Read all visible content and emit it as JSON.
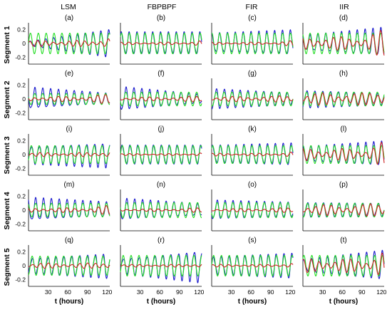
{
  "column_titles": [
    "LSM",
    "FBPBPF",
    "FIR",
    "IIR"
  ],
  "row_titles": [
    "Segment 1",
    "Segment 2",
    "Segment 3",
    "Segment 4",
    "Segment 5"
  ],
  "colors": {
    "blue": "#1a1acc",
    "green": "#22dd22",
    "red": "#cc2222"
  },
  "chart_data": {
    "type": "line",
    "layout": "grid 5 rows x 4 columns",
    "xlabel": "t (hours)",
    "x_ticks": [
      30,
      60,
      90,
      120
    ],
    "y_ticks": [
      -0.2,
      0,
      0.2
    ],
    "y_tick_labels": [
      "-0.2",
      "0",
      "0.2"
    ],
    "xlim": [
      0,
      124
    ],
    "ylim": [
      -0.3,
      0.3
    ],
    "period_hours": 12,
    "panels": [
      {
        "label": "(a)",
        "row": 0,
        "col": 0,
        "blue_amp_start": 0.03,
        "blue_amp_end": 0.19,
        "green_amp": 0.15,
        "red_amp": 0.045
      },
      {
        "label": "(b)",
        "row": 0,
        "col": 1,
        "blue_amp_start": 0.15,
        "blue_amp_end": 0.15,
        "green_amp": 0.15,
        "red_amp": 0.02
      },
      {
        "label": "(c)",
        "row": 0,
        "col": 2,
        "blue_amp_start": 0.13,
        "blue_amp_end": 0.17,
        "green_amp": 0.15,
        "red_amp": 0.02
      },
      {
        "label": "(d)",
        "row": 0,
        "col": 3,
        "blue_amp_start": 0.1,
        "blue_amp_end": 0.2,
        "green_amp": 0.15,
        "red_amp": 0.1
      },
      {
        "label": "(e)",
        "row": 1,
        "col": 0,
        "blue_amp_start": 0.15,
        "blue_amp_end": 0.07,
        "green_amp": 0.08,
        "red_amp": 0.04
      },
      {
        "label": "(f)",
        "row": 1,
        "col": 1,
        "blue_amp_start": 0.16,
        "blue_amp_end": 0.06,
        "green_amp": 0.1,
        "red_amp": 0.03
      },
      {
        "label": "(g)",
        "row": 1,
        "col": 2,
        "blue_amp_start": 0.14,
        "blue_amp_end": 0.08,
        "green_amp": 0.1,
        "red_amp": 0.04
      },
      {
        "label": "(h)",
        "row": 1,
        "col": 3,
        "blue_amp_start": 0.12,
        "blue_amp_end": 0.08,
        "green_amp": 0.1,
        "red_amp": 0.09
      },
      {
        "label": "(i)",
        "row": 2,
        "col": 0,
        "blue_amp_start": 0.12,
        "blue_amp_end": 0.17,
        "green_amp": 0.13,
        "red_amp": 0.03
      },
      {
        "label": "(j)",
        "row": 2,
        "col": 1,
        "blue_amp_start": 0.13,
        "blue_amp_end": 0.13,
        "green_amp": 0.13,
        "red_amp": 0.015
      },
      {
        "label": "(k)",
        "row": 2,
        "col": 2,
        "blue_amp_start": 0.12,
        "blue_amp_end": 0.15,
        "green_amp": 0.13,
        "red_amp": 0.02
      },
      {
        "label": "(l)",
        "row": 2,
        "col": 3,
        "blue_amp_start": 0.1,
        "blue_amp_end": 0.17,
        "green_amp": 0.13,
        "red_amp": 0.09
      },
      {
        "label": "(m)",
        "row": 3,
        "col": 0,
        "blue_amp_start": 0.16,
        "blue_amp_end": 0.1,
        "green_amp": 0.1,
        "red_amp": 0.035
      },
      {
        "label": "(n)",
        "row": 3,
        "col": 1,
        "blue_amp_start": 0.15,
        "blue_amp_end": 0.08,
        "green_amp": 0.11,
        "red_amp": 0.02
      },
      {
        "label": "(o)",
        "row": 3,
        "col": 2,
        "blue_amp_start": 0.13,
        "blue_amp_end": 0.1,
        "green_amp": 0.11,
        "red_amp": 0.025
      },
      {
        "label": "(p)",
        "row": 3,
        "col": 3,
        "blue_amp_start": 0.1,
        "blue_amp_end": 0.09,
        "green_amp": 0.1,
        "red_amp": 0.08
      },
      {
        "label": "(q)",
        "row": 4,
        "col": 0,
        "blue_amp_start": 0.1,
        "blue_amp_end": 0.17,
        "green_amp": 0.14,
        "red_amp": 0.04
      },
      {
        "label": "(r)",
        "row": 4,
        "col": 1,
        "blue_amp_start": 0.1,
        "blue_amp_end": 0.22,
        "green_amp": 0.15,
        "red_amp": 0.02
      },
      {
        "label": "(s)",
        "row": 4,
        "col": 2,
        "blue_amp_start": 0.12,
        "blue_amp_end": 0.17,
        "green_amp": 0.15,
        "red_amp": 0.02
      },
      {
        "label": "(t)",
        "row": 4,
        "col": 3,
        "blue_amp_start": 0.08,
        "blue_amp_end": 0.2,
        "green_amp": 0.15,
        "red_amp": 0.1
      }
    ]
  }
}
